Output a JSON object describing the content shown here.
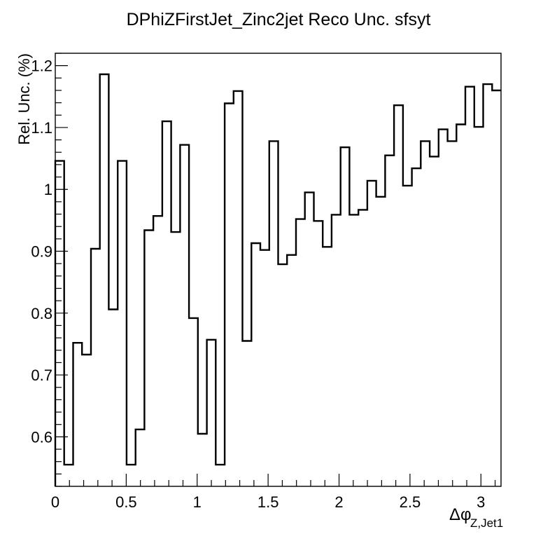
{
  "chart_data": {
    "type": "step-histogram",
    "title": "DPhiZFirstJet_Zinc2jet Reco Unc. sfsyt",
    "ylabel": "Rel. Unc. (%)",
    "xlabel_main": "Δφ",
    "xlabel_sub": "Z,Jet1",
    "xlim": [
      0,
      3.1416
    ],
    "ylim": [
      0.52,
      1.22
    ],
    "x_ticks": [
      0,
      0.5,
      1,
      1.5,
      2,
      2.5,
      3
    ],
    "x_tick_labels": [
      "0",
      "0.5",
      "1",
      "1.5",
      "2",
      "2.5",
      "3"
    ],
    "y_ticks": [
      0.6,
      0.7,
      0.8,
      0.9,
      1.0,
      1.1,
      1.2
    ],
    "y_tick_labels": [
      "0.6",
      "0.7",
      "0.8",
      "0.9",
      "1",
      "1.1",
      "1.2"
    ],
    "bin_edges": [
      0,
      0.0628,
      0.1257,
      0.1885,
      0.2513,
      0.3142,
      0.377,
      0.4398,
      0.5027,
      0.5655,
      0.6283,
      0.6912,
      0.754,
      0.8168,
      0.8796,
      0.9425,
      1.0053,
      1.0681,
      1.131,
      1.1938,
      1.2566,
      1.3195,
      1.3823,
      1.4451,
      1.508,
      1.5708,
      1.6336,
      1.6965,
      1.7593,
      1.8221,
      1.885,
      1.9478,
      2.0106,
      2.0735,
      2.1363,
      2.1991,
      2.2619,
      2.3248,
      2.3876,
      2.4504,
      2.5133,
      2.5761,
      2.6389,
      2.7018,
      2.7646,
      2.8274,
      2.8903,
      2.9531,
      3.0159,
      3.0788,
      3.1416
    ],
    "values": [
      1.046,
      0.555,
      0.752,
      0.733,
      0.904,
      1.186,
      0.806,
      1.046,
      0.555,
      0.612,
      0.934,
      0.957,
      1.11,
      0.931,
      1.072,
      0.792,
      0.605,
      0.757,
      0.555,
      1.139,
      1.159,
      0.755,
      0.913,
      0.902,
      1.078,
      0.879,
      0.894,
      0.952,
      0.995,
      0.949,
      0.907,
      0.959,
      1.068,
      0.959,
      0.967,
      1.014,
      0.988,
      1.055,
      1.136,
      1.006,
      1.034,
      1.078,
      1.053,
      1.097,
      1.078,
      1.105,
      1.166,
      1.101,
      1.17,
      1.16
    ]
  }
}
